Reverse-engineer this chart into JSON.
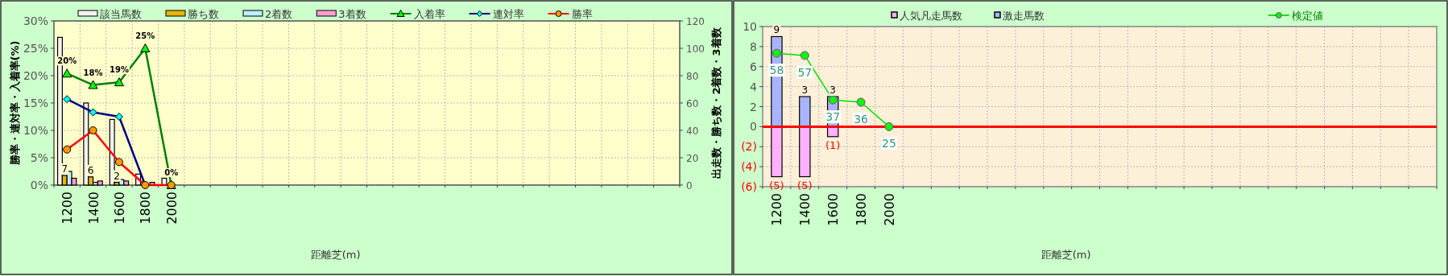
{
  "chart_data": [
    {
      "type": "bar",
      "categories": [
        "1200",
        "1400",
        "1600",
        "1800",
        "2000",
        null,
        null,
        null,
        null,
        null,
        null,
        null,
        null,
        null,
        null,
        null,
        null,
        null,
        null,
        null,
        null,
        null,
        null,
        null
      ],
      "series": [
        {
          "name": "該当馬数",
          "axis": "y2",
          "color": "#f2f2f2",
          "values": [
            108,
            60,
            48,
            8,
            5,
            null,
            null,
            null,
            null,
            null,
            null,
            null,
            null,
            null,
            null,
            null,
            null,
            null,
            null,
            null,
            null,
            null,
            null,
            null
          ]
        },
        {
          "name": "勝ち数",
          "axis": "y2",
          "color": "#e8b400",
          "values": [
            7,
            6,
            2,
            0,
            0,
            null,
            null,
            null,
            null,
            null,
            null,
            null,
            null,
            null,
            null,
            null,
            null,
            null,
            null,
            null,
            null,
            null,
            null,
            null
          ],
          "value_labels": [
            "7",
            "6",
            "2",
            null,
            null,
            null,
            null,
            null,
            null,
            null,
            null,
            null,
            null,
            null,
            null,
            null,
            null,
            null,
            null,
            null,
            null,
            null,
            null,
            null
          ]
        },
        {
          "name": "2着数",
          "axis": "y2",
          "color": "#bff0ff",
          "values": [
            10,
            2,
            4,
            0,
            0,
            null,
            null,
            null,
            null,
            null,
            null,
            null,
            null,
            null,
            null,
            null,
            null,
            null,
            null,
            null,
            null,
            null,
            null,
            null
          ]
        },
        {
          "name": "3着数",
          "axis": "y2",
          "color": "#ff9fd0",
          "values": [
            5,
            3,
            3,
            2,
            0,
            null,
            null,
            null,
            null,
            null,
            null,
            null,
            null,
            null,
            null,
            null,
            null,
            null,
            null,
            null,
            null,
            null,
            null,
            null
          ]
        },
        {
          "name": "入着率",
          "type": "line",
          "color": "#008000",
          "marker": "triangle",
          "values": [
            20.4,
            18.3,
            18.8,
            25,
            0,
            null,
            null,
            null,
            null,
            null,
            null,
            null,
            null,
            null,
            null,
            null,
            null,
            null,
            null,
            null,
            null,
            null,
            null,
            null
          ],
          "value_labels": [
            "20%",
            "18%",
            "19%",
            "25%",
            "0%",
            null,
            null,
            null,
            null,
            null,
            null,
            null,
            null,
            null,
            null,
            null,
            null,
            null,
            null,
            null,
            null,
            null,
            null,
            null
          ]
        },
        {
          "name": "連対率",
          "type": "line",
          "color": "#000080",
          "marker": "diamond",
          "values": [
            15.7,
            13.3,
            12.5,
            0,
            null,
            null,
            null,
            null,
            null,
            null,
            null,
            null,
            null,
            null,
            null,
            null,
            null,
            null,
            null,
            null,
            null,
            null,
            null,
            null
          ]
        },
        {
          "name": "勝率",
          "type": "line",
          "color": "#ff0000",
          "marker": "circle",
          "values": [
            6.5,
            10,
            4.2,
            0,
            0,
            null,
            null,
            null,
            null,
            null,
            null,
            null,
            null,
            null,
            null,
            null,
            null,
            null,
            null,
            null,
            null,
            null,
            null,
            null
          ]
        }
      ],
      "ylim": [
        0,
        30
      ],
      "yticks": [
        {
          "value": 0,
          "label": "0%"
        },
        {
          "value": 5,
          "label": "5%"
        },
        {
          "value": 10,
          "label": "10%"
        },
        {
          "value": 15,
          "label": "15%"
        },
        {
          "value": 20,
          "label": "20%"
        },
        {
          "value": 25,
          "label": "25%"
        },
        {
          "value": 30,
          "label": "30%"
        }
      ],
      "y2lim": [
        0,
        120
      ],
      "y2ticks": [
        0,
        20,
        40,
        60,
        80,
        100,
        120
      ],
      "xlabel": "距離芝(m)",
      "ylabel": "勝率・連対率・入着率(%)",
      "y2label": "出走数・勝ち数・2着数・3着数",
      "legend": "top",
      "grid": true
    },
    {
      "type": "bar",
      "categories": [
        "1200",
        "1400",
        "1600",
        "1800",
        "2000",
        null,
        null,
        null,
        null,
        null,
        null,
        null,
        null,
        null,
        null,
        null,
        null,
        null,
        null,
        null,
        null,
        null,
        null,
        null
      ],
      "stacked": true,
      "series": [
        {
          "name": "人気凡走馬数",
          "color": "#ffb0ff",
          "values": [
            -5,
            -5,
            -1,
            0,
            0,
            null,
            null,
            null,
            null,
            null,
            null,
            null,
            null,
            null,
            null,
            null,
            null,
            null,
            null,
            null,
            null,
            null,
            null,
            null
          ],
          "value_labels": [
            "(5)",
            "(5)",
            "(1)",
            null,
            null,
            null,
            null,
            null,
            null,
            null,
            null,
            null,
            null,
            null,
            null,
            null,
            null,
            null,
            null,
            null,
            null,
            null,
            null,
            null
          ]
        },
        {
          "name": "激走馬数",
          "color": "#a8b4ff",
          "values": [
            9,
            3,
            3,
            0,
            0,
            null,
            null,
            null,
            null,
            null,
            null,
            null,
            null,
            null,
            null,
            null,
            null,
            null,
            null,
            null,
            null,
            null,
            null,
            null
          ],
          "value_labels": [
            "9",
            "3",
            "3",
            null,
            null,
            null,
            null,
            null,
            null,
            null,
            null,
            null,
            null,
            null,
            null,
            null,
            null,
            null,
            null,
            null,
            null,
            null,
            null,
            null
          ]
        },
        {
          "name": "検定値",
          "type": "line",
          "axis": "y2",
          "color": "#00e000",
          "marker": "circle",
          "values": [
            58,
            57,
            37,
            36,
            25,
            null,
            null,
            null,
            null,
            null,
            null,
            null,
            null,
            null,
            null,
            null,
            null,
            null,
            null,
            null,
            null,
            null,
            null,
            null
          ],
          "value_labels": [
            "58",
            "57",
            "37",
            "36",
            "25",
            null,
            null,
            null,
            null,
            null,
            null,
            null,
            null,
            null,
            null,
            null,
            null,
            null,
            null,
            null,
            null,
            null,
            null,
            null
          ]
        }
      ],
      "ylim": [
        -6,
        10
      ],
      "yticks": [
        {
          "value": -6,
          "label": "(6)"
        },
        {
          "value": -4,
          "label": "(4)"
        },
        {
          "value": -2,
          "label": "(2)"
        },
        0,
        2,
        4,
        6,
        8,
        10
      ],
      "y2lim": [
        -2,
        70
      ],
      "ref_lines": [
        {
          "axis": "y",
          "value": 0,
          "color": "#ff0000"
        }
      ],
      "xlabel": "距離芝(m)",
      "legend": "top",
      "grid": true
    }
  ]
}
